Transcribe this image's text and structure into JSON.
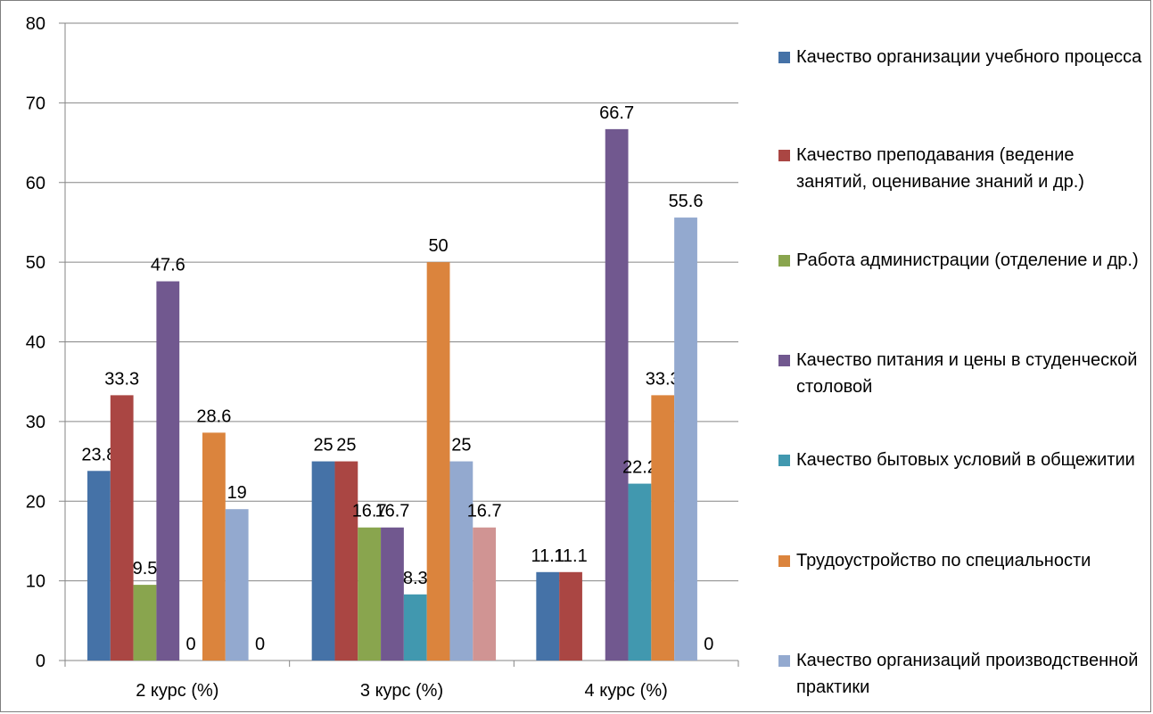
{
  "chart_data": {
    "type": "bar",
    "categories": [
      "2 курс (%)",
      "3 курс (%)",
      "4 курс (%)"
    ],
    "ylim": [
      0,
      80
    ],
    "yticks": [
      0,
      10,
      20,
      30,
      40,
      50,
      60,
      70,
      80
    ],
    "grid": true,
    "legend_position": "right",
    "series": [
      {
        "name": "Качество организации учебного процесса",
        "color": "#4572A7",
        "values": [
          23.8,
          25,
          11.1
        ],
        "labels": [
          "23.8",
          "25",
          "11.1"
        ]
      },
      {
        "name": "Качество преподавания (ведение занятий, оценивание знаний и др.)",
        "color": "#AA4643",
        "values": [
          33.3,
          25,
          11.1
        ],
        "labels": [
          "33.3",
          "25",
          "11.1"
        ]
      },
      {
        "name": "Работа администрации (отделение и др.)",
        "color": "#89A54E",
        "values": [
          9.5,
          16.7,
          0
        ],
        "labels": [
          "9.5",
          "16.7",
          ""
        ]
      },
      {
        "name": "Качество питания и цены в студенческой столовой",
        "color": "#71588F",
        "values": [
          47.6,
          16.7,
          66.7
        ],
        "labels": [
          "47.6",
          "16.7",
          "66.7"
        ]
      },
      {
        "name": "Качество бытовых условий в общежитии",
        "color": "#4198AF",
        "values": [
          0,
          8.3,
          22.2
        ],
        "labels": [
          "0",
          "8.3",
          "22.2"
        ]
      },
      {
        "name": "Трудоустройство по специальности",
        "color": "#DB843D",
        "values": [
          28.6,
          50,
          33.3
        ],
        "labels": [
          "28.6",
          "50",
          "33.3"
        ]
      },
      {
        "name": "Качество организаций производственной практики",
        "color": "#93A9CF",
        "values": [
          19,
          25,
          55.6
        ],
        "labels": [
          "19",
          "25",
          "55.6"
        ]
      },
      {
        "name": "",
        "color": "#D09493",
        "values": [
          0,
          16.7,
          0
        ],
        "labels": [
          "0",
          "16.7",
          "0"
        ]
      }
    ]
  }
}
